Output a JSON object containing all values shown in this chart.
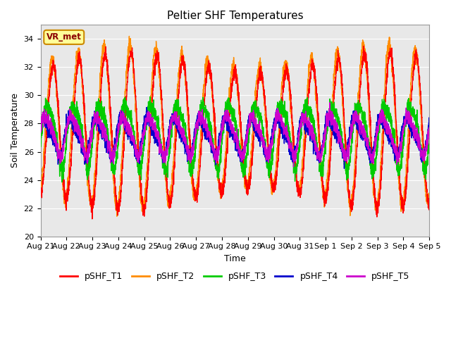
{
  "title": "Peltier SHF Temperatures",
  "ylabel": "Soil Temperature",
  "xlabel": "Time",
  "xlabels": [
    "Aug 21",
    "Aug 22",
    "Aug 23",
    "Aug 24",
    "Aug 25",
    "Aug 26",
    "Aug 27",
    "Aug 28",
    "Aug 29",
    "Aug 30",
    "Aug 31",
    "Sep 1",
    "Sep 2",
    "Sep 3",
    "Sep 4",
    "Sep 5"
  ],
  "ylim": [
    20,
    35
  ],
  "yticks": [
    20,
    22,
    24,
    26,
    28,
    30,
    32,
    34
  ],
  "colors": {
    "T1": "#ff0000",
    "T2": "#ff8c00",
    "T3": "#00cc00",
    "T4": "#0000cc",
    "T5": "#cc00cc"
  },
  "legend_labels": [
    "pSHF_T1",
    "pSHF_T2",
    "pSHF_T3",
    "pSHF_T4",
    "pSHF_T5"
  ],
  "vr_met_box_color": "#ffff99",
  "vr_met_border_color": "#cc8800",
  "vr_met_text_color": "#8b0000",
  "plot_bg_color": "#e8e8e8",
  "fig_bg_color": "#ffffff",
  "title_fontsize": 11,
  "axis_label_fontsize": 9,
  "tick_fontsize": 8,
  "legend_fontsize": 9,
  "n_days": 15,
  "points_per_day": 240
}
